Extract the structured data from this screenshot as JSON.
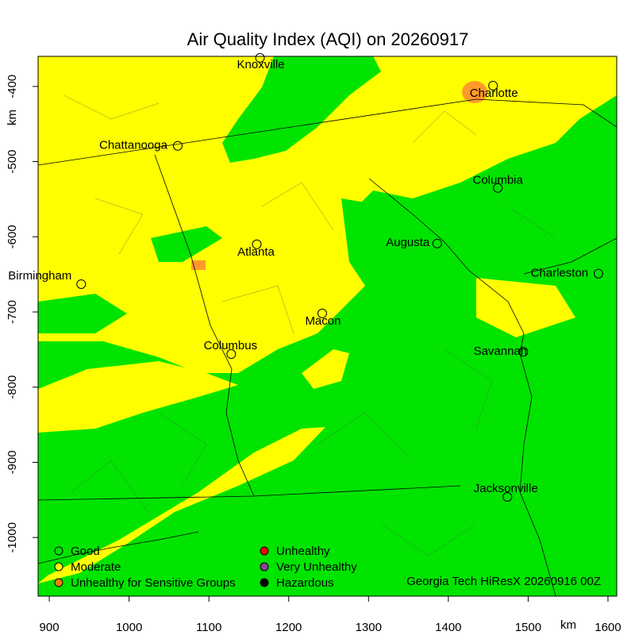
{
  "title": "Air Quality Index (AQI) on 20260917",
  "xaxis": {
    "label": "km",
    "lim": [
      886,
      1611
    ],
    "ticks": [
      900,
      1000,
      1100,
      1200,
      1300,
      1400,
      1500,
      1600
    ]
  },
  "yaxis": {
    "label": "km",
    "lim": [
      -1078,
      -360
    ],
    "ticks": [
      -400,
      -500,
      -600,
      -700,
      -800,
      -900,
      -1000
    ]
  },
  "cities": [
    {
      "name": "Knoxville",
      "x": 1164,
      "y": -362
    },
    {
      "name": "Charlotte",
      "x": 1456,
      "y": -399
    },
    {
      "name": "Chattanooga",
      "x": 1061,
      "y": -479
    },
    {
      "name": "Columbia",
      "x": 1462,
      "y": -535
    },
    {
      "name": "Atlanta",
      "x": 1160,
      "y": -610
    },
    {
      "name": "Augusta",
      "x": 1386,
      "y": -609
    },
    {
      "name": "Birmingham",
      "x": 940,
      "y": -663
    },
    {
      "name": "Charleston",
      "x": 1588,
      "y": -649
    },
    {
      "name": "Macon",
      "x": 1242,
      "y": -702
    },
    {
      "name": "Columbus",
      "x": 1128,
      "y": -756
    },
    {
      "name": "Savannah",
      "x": 1494,
      "y": -753
    },
    {
      "name": "Jacksonville",
      "x": 1474,
      "y": -946
    }
  ],
  "legend": [
    {
      "label": "Good",
      "color": "#00e400"
    },
    {
      "label": "Moderate",
      "color": "#ffff00"
    },
    {
      "label": "Unhealthy for Sensitive Groups",
      "color": "#ff7e00"
    },
    {
      "label": "Unhealthy",
      "color": "#ff0000"
    },
    {
      "label": "Very Unhealthy",
      "color": "#8f3f97"
    },
    {
      "label": "Hazardous",
      "color": "#000000"
    }
  ],
  "credit": "Georgia Tech HiResX 20260916 00Z"
}
